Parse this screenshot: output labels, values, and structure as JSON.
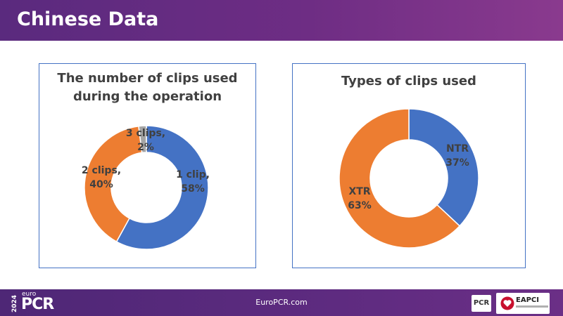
{
  "slide": {
    "title": "Chinese Data"
  },
  "chart_data": [
    {
      "type": "pie",
      "donut": true,
      "title_lines": [
        "The number of clips used",
        "during the operation"
      ],
      "categories": [
        "1 clip",
        "2 clips",
        "3 clips"
      ],
      "values": [
        58,
        40,
        2
      ],
      "unit": "%",
      "colors": [
        "#4472c4",
        "#ed7d31",
        "#a5a5a5"
      ],
      "labels": [
        [
          "1 clip,",
          "58%"
        ],
        [
          "2 clips,",
          "40%"
        ],
        [
          "3 clips,",
          "2%"
        ]
      ]
    },
    {
      "type": "pie",
      "donut": true,
      "title_lines": [
        "Types of clips used"
      ],
      "categories": [
        "NTR",
        "XTR"
      ],
      "values": [
        37,
        63
      ],
      "unit": "%",
      "colors": [
        "#4472c4",
        "#ed7d31"
      ],
      "labels": [
        [
          "NTR",
          "37%"
        ],
        [
          "XTR",
          "63%"
        ]
      ]
    }
  ],
  "footer": {
    "year": "2024",
    "brand_prefix": "euro",
    "brand_name": "PCR",
    "url": "EuroPCR.com",
    "partner_pcr": "PCR",
    "partner_eapci": "EAPCI"
  }
}
